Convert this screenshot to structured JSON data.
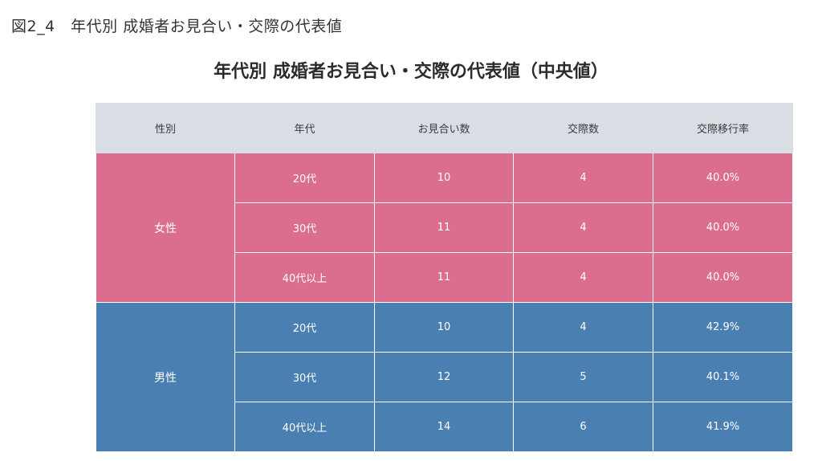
{
  "figure_label": "図2_4　年代別 成婚者お見合い・交際の代表値",
  "title": "年代別 成婚者お見合い・交際の代表値（中央値）",
  "columns": [
    "性別",
    "年代",
    "お見合い数",
    "交際数",
    "交際移行率"
  ],
  "groups": [
    {
      "sex": "女性",
      "color": "#db6e8f",
      "rows": [
        {
          "age": "20代",
          "omiai": "10",
          "kousai": "4",
          "rate": "40.0%"
        },
        {
          "age": "30代",
          "omiai": "11",
          "kousai": "4",
          "rate": "40.0%"
        },
        {
          "age": "40代以上",
          "omiai": "11",
          "kousai": "4",
          "rate": "40.0%"
        }
      ]
    },
    {
      "sex": "男性",
      "color": "#4a80b1",
      "rows": [
        {
          "age": "20代",
          "omiai": "10",
          "kousai": "4",
          "rate": "42.9%"
        },
        {
          "age": "30代",
          "omiai": "12",
          "kousai": "5",
          "rate": "40.1%"
        },
        {
          "age": "40代以上",
          "omiai": "14",
          "kousai": "6",
          "rate": "41.9%"
        }
      ]
    }
  ],
  "colors": {
    "header_bg": "#d8dee3",
    "female": "#db6e8f",
    "male": "#4a80b1"
  }
}
